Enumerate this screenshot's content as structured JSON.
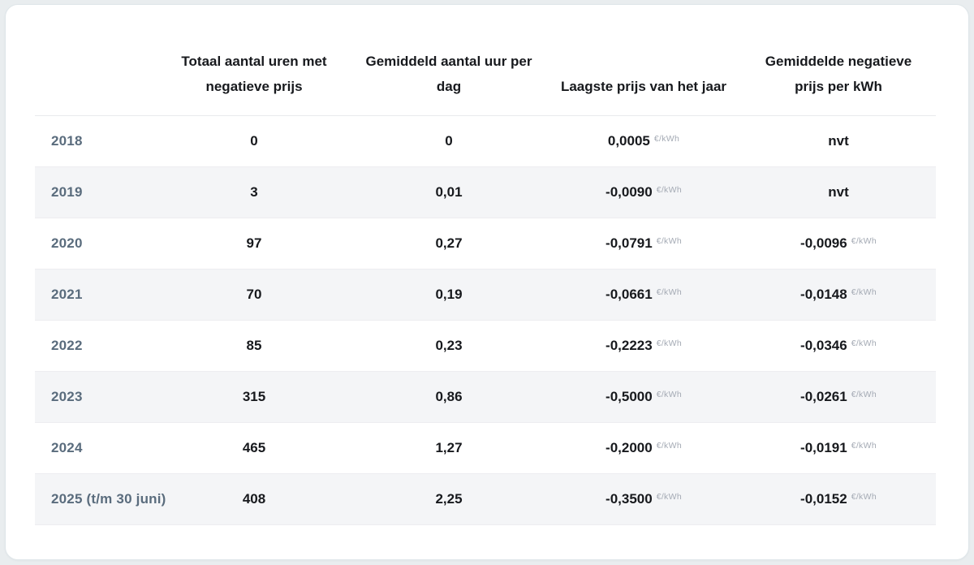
{
  "colors": {
    "page_background": "#e9edef",
    "card_background": "#ffffff",
    "card_border": "#dfe6e9",
    "stripe_row": "#f4f5f7",
    "row_border": "#ededf0",
    "header_text": "#17191d",
    "year_text": "#5a6c7d",
    "value_text": "#17191d",
    "unit_text": "#a4aab4"
  },
  "table": {
    "unit": "€/kWh",
    "columns": [
      "",
      "Totaal aantal uren met negatieve prijs",
      "Gemiddeld aantal uur per dag",
      "Laagste prijs van het jaar",
      "Gemiddelde negatieve prijs per kWh"
    ],
    "rows": [
      {
        "year": "2018",
        "hours": "0",
        "per_day": "0",
        "lowest": "0,0005",
        "avg": "nvt"
      },
      {
        "year": "2019",
        "hours": "3",
        "per_day": "0,01",
        "lowest": "-0,0090",
        "avg": "nvt"
      },
      {
        "year": "2020",
        "hours": "97",
        "per_day": "0,27",
        "lowest": "-0,0791",
        "avg": "-0,0096"
      },
      {
        "year": "2021",
        "hours": "70",
        "per_day": "0,19",
        "lowest": "-0,0661",
        "avg": "-0,0148"
      },
      {
        "year": "2022",
        "hours": "85",
        "per_day": "0,23",
        "lowest": "-0,2223",
        "avg": "-0,0346"
      },
      {
        "year": "2023",
        "hours": "315",
        "per_day": "0,86",
        "lowest": "-0,5000",
        "avg": "-0,0261"
      },
      {
        "year": "2024",
        "hours": "465",
        "per_day": "1,27",
        "lowest": "-0,2000",
        "avg": "-0,0191"
      },
      {
        "year": "2025 (t/m 30 juni)",
        "hours": "408",
        "per_day": "2,25",
        "lowest": "-0,3500",
        "avg": "-0,0152"
      }
    ]
  }
}
